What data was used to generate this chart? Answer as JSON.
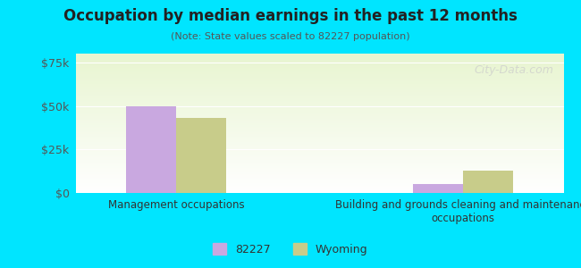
{
  "title": "Occupation by median earnings in the past 12 months",
  "subtitle": "(Note: State values scaled to 82227 population)",
  "categories": [
    "Management occupations",
    "Building and grounds cleaning and maintenance\noccupations"
  ],
  "series_82227": [
    50000,
    5000
  ],
  "series_wyoming": [
    43000,
    13000
  ],
  "bar_color_82227": "#c9a8e0",
  "bar_color_wyoming": "#c8cc8a",
  "ylim": [
    0,
    80000
  ],
  "yticks": [
    0,
    25000,
    50000,
    75000
  ],
  "ytick_labels": [
    "$0",
    "$25k",
    "$50k",
    "$75k"
  ],
  "legend_labels": [
    "82227",
    "Wyoming"
  ],
  "background_outer": "#00e5ff",
  "watermark": "City-Data.com",
  "bar_width": 0.35,
  "group_positions": [
    0.5,
    2.5
  ]
}
